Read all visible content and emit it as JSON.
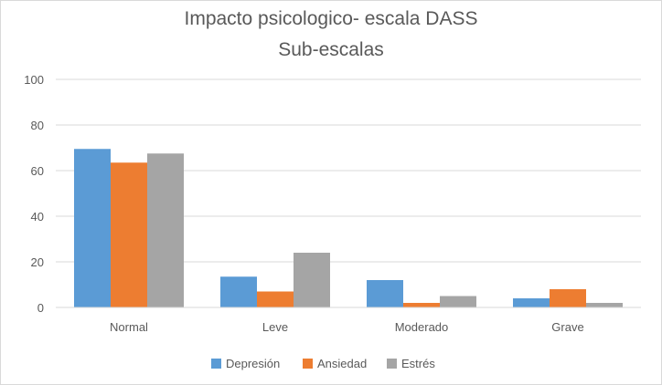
{
  "chart_data": {
    "type": "bar",
    "title_lines": [
      "Impacto psicologico- escala DASS",
      "Sub-escalas"
    ],
    "categories": [
      "Normal",
      "Leve",
      "Moderado",
      "Grave"
    ],
    "series": [
      {
        "name": "Depresión",
        "values": [
          69.5,
          13.5,
          12,
          4
        ],
        "color": "#5B9BD5"
      },
      {
        "name": "Ansiedad",
        "values": [
          63.5,
          7,
          2,
          8
        ],
        "color": "#ED7D31"
      },
      {
        "name": "Estrés",
        "values": [
          67.5,
          24,
          5,
          2
        ],
        "color": "#A5A5A5"
      }
    ],
    "ylim": [
      0,
      100
    ],
    "yticks": [
      0,
      20,
      40,
      60,
      80,
      100
    ],
    "grid": true,
    "legend_position": "bottom"
  }
}
